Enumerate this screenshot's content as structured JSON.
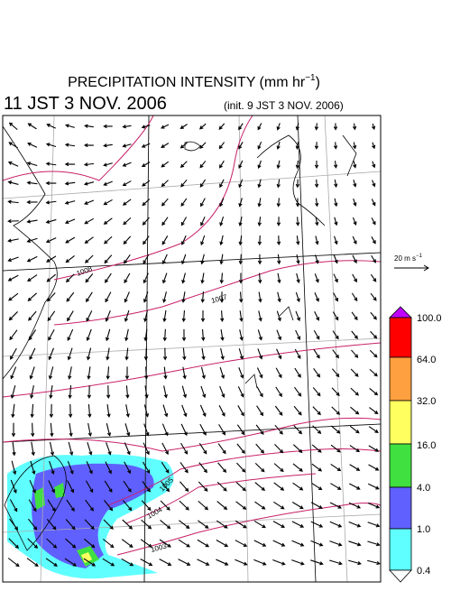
{
  "header": {
    "title": "PRECIPITATION INTENSITY (mm hr",
    "title_exponent": "−1",
    "title_close": ")",
    "valid_time": "11 JST 3 NOV. 2006",
    "init_time": "(init. 9 JST 3 NOV. 2006)"
  },
  "reference_vector": {
    "label": "20 m s",
    "exponent": "−1"
  },
  "colorbar": {
    "labels": [
      "100.0",
      "64.0",
      "32.0",
      "16.0",
      "4.0",
      "1.0",
      "0.4"
    ]
  },
  "contour_labels": [
    "1008",
    "1007",
    "1005",
    "1004",
    "1003"
  ]
}
